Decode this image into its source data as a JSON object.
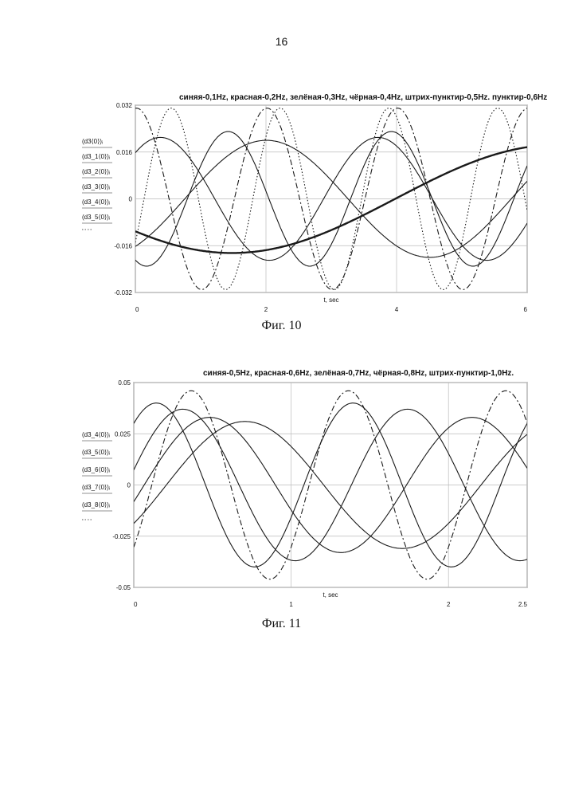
{
  "page": {
    "number": "16"
  },
  "chart_data": [
    {
      "type": "line",
      "title": "синяя-0,1Hz, красная-0,2Hz, зелёная-0,3Hz, чёрная-0,4Hz, штрих-пунктир-0,5Hz. пунктир-0,6Hz",
      "caption": "Фиг. 10",
      "xlabel": "t, sec",
      "xlim": [
        0,
        6
      ],
      "ylim": [
        -0.032,
        0.032
      ],
      "x_ticks": [
        "0",
        "2",
        "4",
        "6"
      ],
      "y_ticks": [
        "0.032",
        "0.016",
        "0",
        "-0.016",
        "-0.032"
      ],
      "grid": true,
      "legend_labels": [
        "(d3⟨0⟩)ᵢ",
        "(d3_1⟨0⟩)ᵢ",
        "(d3_2⟨0⟩)ᵢ",
        "(d3_3⟨0⟩)ᵢ",
        "(d3_4⟨0⟩)ᵢ",
        "(d3_5⟨0⟩)ᵢ"
      ],
      "series": [
        {
          "freq": 0.1,
          "amp": 0.0185,
          "phase": -2.5,
          "style": "thick"
        },
        {
          "freq": 0.2,
          "amp": 0.02,
          "phase": -0.95,
          "style": "solid"
        },
        {
          "freq": 0.3,
          "amp": 0.021,
          "phase": 0.85,
          "style": "solid"
        },
        {
          "freq": 0.4,
          "amp": 0.023,
          "phase": -2.0,
          "style": "solid"
        },
        {
          "freq": 0.5,
          "amp": 0.031,
          "phase": 1.52,
          "style": "dashdot"
        },
        {
          "freq": 0.6,
          "amp": 0.031,
          "phase": -0.5,
          "style": "dotted"
        }
      ]
    },
    {
      "type": "line",
      "title": "синяя-0,5Hz, красная-0,6Hz, зелёная-0,7Hz, чёрная-0,8Hz, штрих-пунктир-1,0Hz.",
      "caption": "Фиг. 11",
      "xlabel": "t, sec",
      "xlim": [
        0,
        2.5
      ],
      "ylim": [
        -0.05,
        0.05
      ],
      "x_ticks": [
        "0",
        "1",
        "2",
        "2.5"
      ],
      "y_ticks": [
        "0.05",
        "0.025",
        "0",
        "-0.025",
        "-0.05"
      ],
      "grid": true,
      "legend_labels": [
        "(d3_4⟨0⟩)ᵢ",
        "(d3_5⟨0⟩)ᵢ",
        "(d3_6⟨0⟩)ᵢ",
        "(d3_7⟨0⟩)ᵢ",
        "(d3_8⟨0⟩)ᵢ"
      ],
      "series": [
        {
          "freq": 0.5,
          "amp": 0.031,
          "phase": -0.65,
          "style": "solid"
        },
        {
          "freq": 0.6,
          "amp": 0.033,
          "phase": -0.25,
          "style": "solid"
        },
        {
          "freq": 0.7,
          "amp": 0.037,
          "phase": 0.2,
          "style": "solid"
        },
        {
          "freq": 0.8,
          "amp": 0.04,
          "phase": 0.85,
          "style": "solid"
        },
        {
          "freq": 1.0,
          "amp": 0.046,
          "phase": -0.72,
          "style": "dashdot"
        }
      ]
    }
  ]
}
